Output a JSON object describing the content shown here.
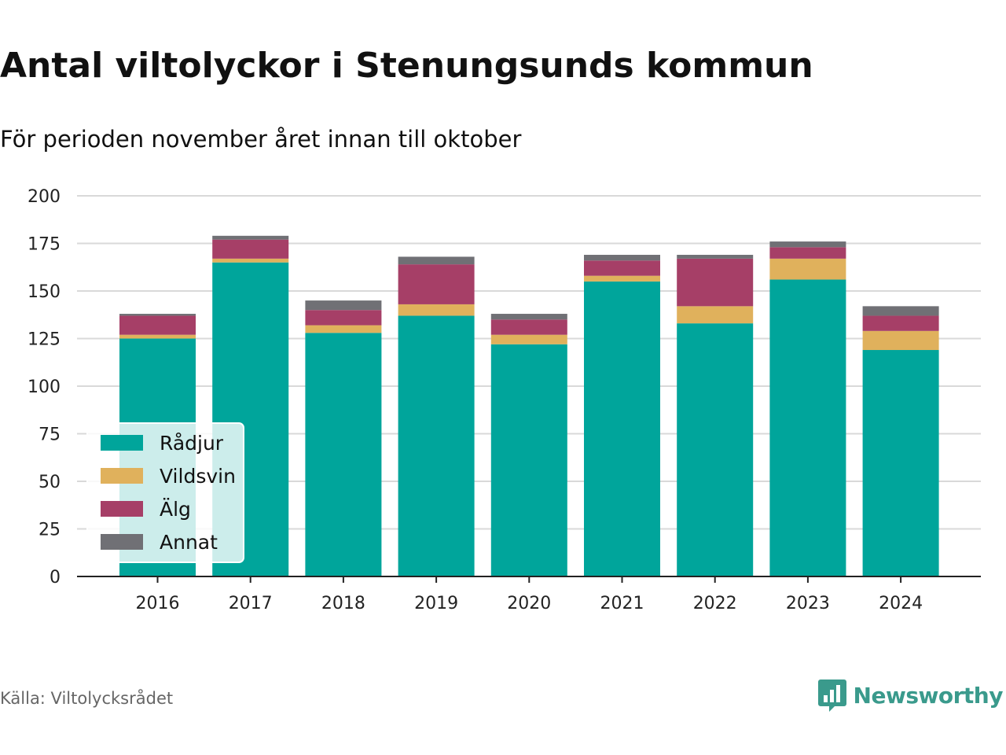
{
  "header": {
    "title": "Antal viltolyckor i Stenungsunds kommun",
    "subtitle": "För perioden november året innan till oktober"
  },
  "footer": {
    "source": "Källa: Viltolycksrådet",
    "brand": "Newsworthy",
    "brand_icon": "newsworthy-logo-icon"
  },
  "chart_data": {
    "type": "bar",
    "stacked": true,
    "title": "Antal viltolyckor i Stenungsunds kommun",
    "subtitle": "För perioden november året innan till oktober",
    "categories": [
      "2016",
      "2017",
      "2018",
      "2019",
      "2020",
      "2021",
      "2022",
      "2023",
      "2024"
    ],
    "series": [
      {
        "name": "Rådjur",
        "color": "#00a59b",
        "values": [
          125,
          165,
          128,
          137,
          122,
          155,
          133,
          156,
          119
        ]
      },
      {
        "name": "Vildsvin",
        "color": "#e0b15c",
        "values": [
          2,
          2,
          4,
          6,
          5,
          3,
          9,
          11,
          10
        ]
      },
      {
        "name": "Älg",
        "color": "#a63f67",
        "values": [
          10,
          10,
          8,
          21,
          8,
          8,
          25,
          6,
          8
        ]
      },
      {
        "name": "Annat",
        "color": "#707075",
        "values": [
          1,
          2,
          5,
          4,
          3,
          3,
          2,
          3,
          5
        ]
      }
    ],
    "ylim": [
      0,
      200
    ],
    "yticks": [
      "0",
      "25",
      "50",
      "75",
      "100",
      "125",
      "150",
      "175",
      "200"
    ],
    "grid": true,
    "legend": "bottom-left"
  }
}
